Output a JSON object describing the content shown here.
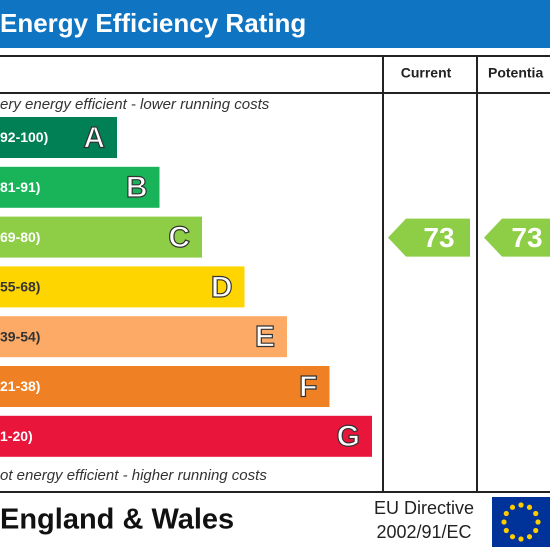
{
  "chart_data": {
    "type": "epc",
    "title": "Energy Efficiency Rating",
    "columns": [
      "Current",
      "Potentia"
    ],
    "top_note": "ery energy efficient - lower running costs",
    "bottom_note": "ot energy efficient - higher running costs",
    "bands": [
      {
        "range": "92-100)",
        "letter": "A",
        "color": "#008054"
      },
      {
        "range": "81-91)",
        "letter": "B",
        "color": "#19b459"
      },
      {
        "range": "69-80)",
        "letter": "C",
        "color": "#8dce46"
      },
      {
        "range": "55-68)",
        "letter": "D",
        "color": "#ffd500"
      },
      {
        "range": "39-54)",
        "letter": "E",
        "color": "#fcaa65"
      },
      {
        "range": "21-38)",
        "letter": "F",
        "color": "#ef8023"
      },
      {
        "range": "1-20)",
        "letter": "G",
        "color": "#e9153b"
      }
    ],
    "current": {
      "value": 73,
      "color": "#8dce46"
    },
    "potential": {
      "value": 73,
      "color": "#8dce46"
    },
    "region": "England & Wales",
    "directive": [
      "EU Directive",
      "2002/91/EC"
    ]
  }
}
